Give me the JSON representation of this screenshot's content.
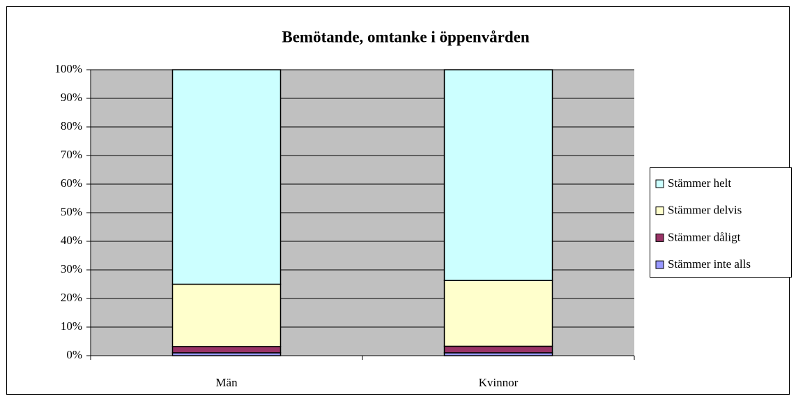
{
  "chart_data": {
    "type": "stacked_bar_percent",
    "title": "Bemötande, omtanke i öppenvården",
    "categories": [
      "Män",
      "Kvinnor"
    ],
    "series": [
      {
        "name": "Stämmer inte alls",
        "color": "#9999ff",
        "values": [
          1,
          1
        ]
      },
      {
        "name": "Stämmer dåligt",
        "color": "#993366",
        "values": [
          2.2,
          2.3
        ]
      },
      {
        "name": "Stämmer delvis",
        "color": "#ffffcc",
        "values": [
          21.8,
          23
        ]
      },
      {
        "name": "Stämmer helt",
        "color": "#ccffff",
        "values": [
          75,
          73.7
        ]
      }
    ],
    "ylim": [
      0,
      100
    ],
    "yticks": [
      {
        "value": 0,
        "label": "0%"
      },
      {
        "value": 10,
        "label": "10%"
      },
      {
        "value": 20,
        "label": "20%"
      },
      {
        "value": 30,
        "label": "30%"
      },
      {
        "value": 40,
        "label": "40%"
      },
      {
        "value": 50,
        "label": "50%"
      },
      {
        "value": 60,
        "label": "60%"
      },
      {
        "value": 70,
        "label": "70%"
      },
      {
        "value": 80,
        "label": "80%"
      },
      {
        "value": 90,
        "label": "90%"
      },
      {
        "value": 100,
        "label": "100%"
      }
    ],
    "grid": true,
    "plot_background": "#c0c0c0",
    "legend": "right"
  }
}
